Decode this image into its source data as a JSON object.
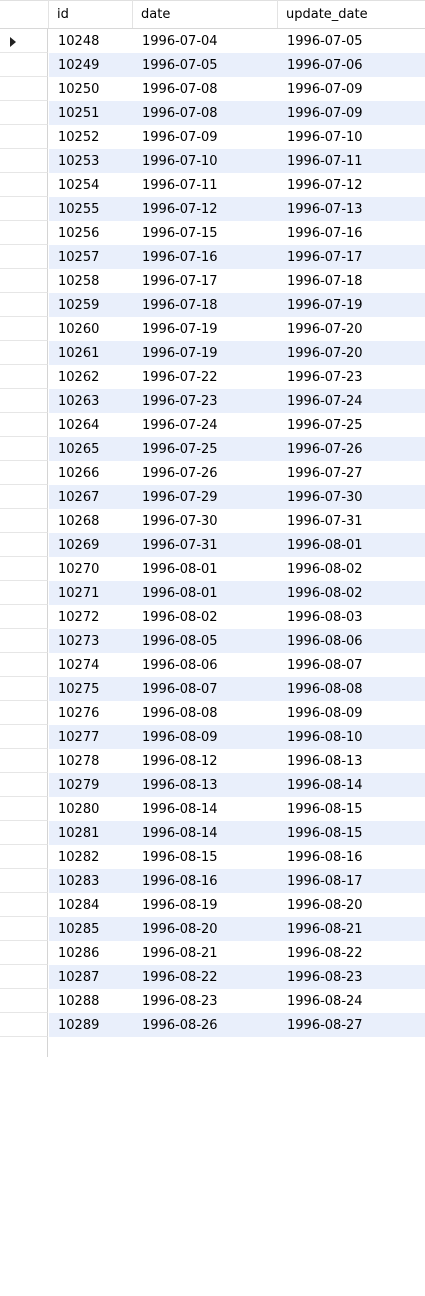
{
  "table": {
    "columns": [
      "id",
      "date",
      "update_date"
    ],
    "current_row_index": 0,
    "rows": [
      [
        "10248",
        "1996-07-04",
        "1996-07-05"
      ],
      [
        "10249",
        "1996-07-05",
        "1996-07-06"
      ],
      [
        "10250",
        "1996-07-08",
        "1996-07-09"
      ],
      [
        "10251",
        "1996-07-08",
        "1996-07-09"
      ],
      [
        "10252",
        "1996-07-09",
        "1996-07-10"
      ],
      [
        "10253",
        "1996-07-10",
        "1996-07-11"
      ],
      [
        "10254",
        "1996-07-11",
        "1996-07-12"
      ],
      [
        "10255",
        "1996-07-12",
        "1996-07-13"
      ],
      [
        "10256",
        "1996-07-15",
        "1996-07-16"
      ],
      [
        "10257",
        "1996-07-16",
        "1996-07-17"
      ],
      [
        "10258",
        "1996-07-17",
        "1996-07-18"
      ],
      [
        "10259",
        "1996-07-18",
        "1996-07-19"
      ],
      [
        "10260",
        "1996-07-19",
        "1996-07-20"
      ],
      [
        "10261",
        "1996-07-19",
        "1996-07-20"
      ],
      [
        "10262",
        "1996-07-22",
        "1996-07-23"
      ],
      [
        "10263",
        "1996-07-23",
        "1996-07-24"
      ],
      [
        "10264",
        "1996-07-24",
        "1996-07-25"
      ],
      [
        "10265",
        "1996-07-25",
        "1996-07-26"
      ],
      [
        "10266",
        "1996-07-26",
        "1996-07-27"
      ],
      [
        "10267",
        "1996-07-29",
        "1996-07-30"
      ],
      [
        "10268",
        "1996-07-30",
        "1996-07-31"
      ],
      [
        "10269",
        "1996-07-31",
        "1996-08-01"
      ],
      [
        "10270",
        "1996-08-01",
        "1996-08-02"
      ],
      [
        "10271",
        "1996-08-01",
        "1996-08-02"
      ],
      [
        "10272",
        "1996-08-02",
        "1996-08-03"
      ],
      [
        "10273",
        "1996-08-05",
        "1996-08-06"
      ],
      [
        "10274",
        "1996-08-06",
        "1996-08-07"
      ],
      [
        "10275",
        "1996-08-07",
        "1996-08-08"
      ],
      [
        "10276",
        "1996-08-08",
        "1996-08-09"
      ],
      [
        "10277",
        "1996-08-09",
        "1996-08-10"
      ],
      [
        "10278",
        "1996-08-12",
        "1996-08-13"
      ],
      [
        "10279",
        "1996-08-13",
        "1996-08-14"
      ],
      [
        "10280",
        "1996-08-14",
        "1996-08-15"
      ],
      [
        "10281",
        "1996-08-14",
        "1996-08-15"
      ],
      [
        "10282",
        "1996-08-15",
        "1996-08-16"
      ],
      [
        "10283",
        "1996-08-16",
        "1996-08-17"
      ],
      [
        "10284",
        "1996-08-19",
        "1996-08-20"
      ],
      [
        "10285",
        "1996-08-20",
        "1996-08-21"
      ],
      [
        "10286",
        "1996-08-21",
        "1996-08-22"
      ],
      [
        "10287",
        "1996-08-22",
        "1996-08-23"
      ],
      [
        "10288",
        "1996-08-23",
        "1996-08-24"
      ],
      [
        "10289",
        "1996-08-26",
        "1996-08-27"
      ]
    ]
  },
  "icons": {
    "current_row": "row-pointer-icon"
  },
  "colors": {
    "alt_row": "#e9effb",
    "background": "#ffffff"
  }
}
